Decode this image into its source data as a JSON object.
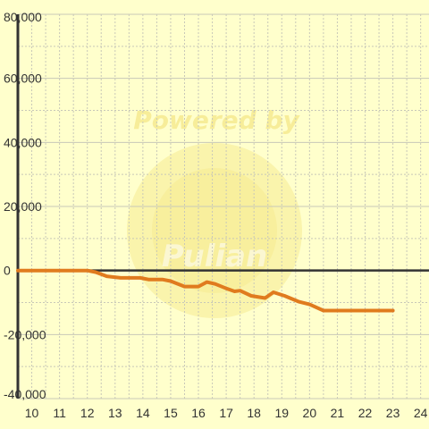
{
  "chart_data": {
    "type": "line",
    "title": "",
    "xlabel": "",
    "ylabel": "",
    "xlim": [
      9.5,
      24.3
    ],
    "ylim": [
      -40000,
      80000
    ],
    "x_ticks": [
      10,
      11,
      12,
      13,
      14,
      15,
      16,
      17,
      18,
      19,
      20,
      21,
      22,
      23,
      24
    ],
    "x_tick_labels": [
      "10",
      "11",
      "12",
      "13",
      "14",
      "15",
      "16",
      "17",
      "18",
      "19",
      "20",
      "21",
      "22",
      "23",
      "24"
    ],
    "x_minor_step": 0.5,
    "y_ticks": [
      -40000,
      -20000,
      0,
      20000,
      40000,
      60000,
      80000
    ],
    "y_tick_labels": [
      "-40,000",
      "-20,000",
      "0",
      "20,000",
      "40,000",
      "60,000",
      "80,000"
    ],
    "y_minor_step": 10000,
    "grid": true,
    "legend": "none",
    "series": [
      {
        "color": "#e07b1e",
        "x": [
          9.5,
          12.0,
          12.3,
          12.7,
          13.2,
          13.9,
          14.2,
          14.7,
          15.0,
          15.5,
          16.0,
          16.3,
          16.6,
          17.0,
          17.3,
          17.5,
          17.9,
          18.4,
          18.7,
          19.1,
          19.6,
          20.0,
          20.5,
          21.0,
          23.0
        ],
        "y": [
          0,
          0,
          -500,
          -1800,
          -2300,
          -2300,
          -2800,
          -2800,
          -3300,
          -5000,
          -5000,
          -3600,
          -4200,
          -5600,
          -6500,
          -6300,
          -7900,
          -8600,
          -6800,
          -7900,
          -9700,
          -10600,
          -12500,
          -12500,
          -12500
        ]
      }
    ],
    "watermark": {
      "line1": "Powered by",
      "line2": "Pulian",
      "color": "#f2df70"
    }
  },
  "colors": {
    "background": "#ffffcc",
    "grid_major": "#c8c8b8",
    "grid_minor": "#c8c8b8",
    "axis": "#333333",
    "zero_line": "#333333"
  }
}
